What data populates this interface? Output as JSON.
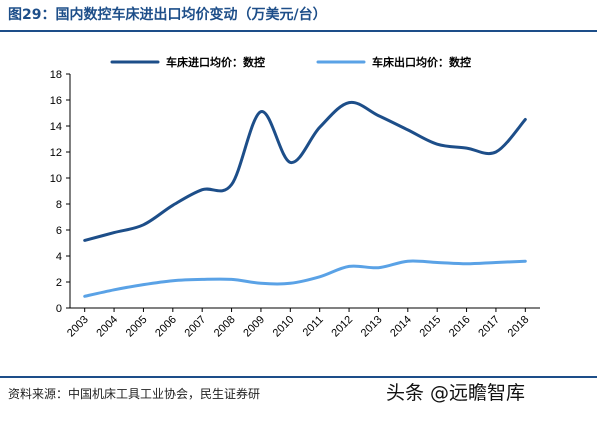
{
  "title": "图29：国内数控车床进出口均价变动（万美元/台）",
  "source": "资料来源：中国机床工具工业协会，民生证券研",
  "watermark": "头条 @远瞻智库",
  "chart_data": {
    "type": "line",
    "x": [
      "2003",
      "2004",
      "2005",
      "2006",
      "2007",
      "2008",
      "2009",
      "2010",
      "2011",
      "2012",
      "2013",
      "2014",
      "2015",
      "2016",
      "2017",
      "2018"
    ],
    "series": [
      {
        "name": "车床进口均价：数控",
        "color": "#1d4e89",
        "values": [
          5.2,
          5.8,
          6.4,
          7.9,
          9.1,
          9.5,
          15.1,
          11.2,
          13.9,
          15.8,
          14.8,
          13.7,
          12.6,
          12.3,
          12.0,
          14.5
        ]
      },
      {
        "name": "车床出口均价：数控",
        "color": "#5aa2e6",
        "values": [
          0.9,
          1.4,
          1.8,
          2.1,
          2.2,
          2.2,
          1.9,
          1.9,
          2.4,
          3.2,
          3.1,
          3.6,
          3.5,
          3.4,
          3.5,
          3.6
        ]
      }
    ],
    "yticks": [
      0,
      2,
      4,
      6,
      8,
      10,
      12,
      14,
      16,
      18
    ],
    "ylim": [
      0,
      18
    ],
    "legend_position": "top",
    "grid": false
  }
}
